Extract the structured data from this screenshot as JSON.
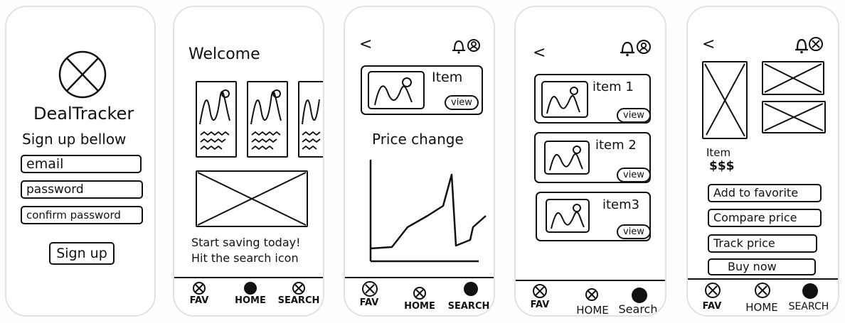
{
  "screen1": {
    "app_name": "DealTracker",
    "signup_heading": "Sign up bellow",
    "email_field": "email",
    "password_field": "password",
    "confirm_password_field": "confirm password",
    "signup_button": "Sign up"
  },
  "screen2": {
    "welcome": "Welcome",
    "tagline_line1": "Start saving today!",
    "tagline_line2": "Hit the search icon",
    "nav": {
      "fav": "FAV",
      "home": "HOME",
      "search": "SEARCH"
    }
  },
  "screen3": {
    "back": "<",
    "item_title": "Item",
    "view": "view",
    "price_change": "Price change",
    "nav": {
      "fav": "FAV",
      "home": "HOME",
      "search": "SEARCH"
    }
  },
  "screen4": {
    "back": "<",
    "items": [
      {
        "label": "item 1",
        "view": "view"
      },
      {
        "label": "item 2",
        "view": "view"
      },
      {
        "label": "item3",
        "view": "view"
      }
    ],
    "nav": {
      "fav": "FAV",
      "home": "HOME",
      "search": "Search"
    }
  },
  "screen5": {
    "back": "<",
    "item_title": "Item",
    "price": "$$$",
    "add_favorite": "Add to favorite",
    "compare_price": "Compare price",
    "track_price": "Track price",
    "buy_now": "Buy now",
    "nav": {
      "fav": "FAV",
      "home": "HOME",
      "search": "SEARCH"
    }
  },
  "icons": {
    "logo": "circle-x-logo-icon",
    "bell": "bell-icon",
    "profile": "profile-icon",
    "image_placeholder": "image-icon",
    "nav_inactive": "circle-x-icon",
    "nav_active": "filled-circle-icon"
  }
}
